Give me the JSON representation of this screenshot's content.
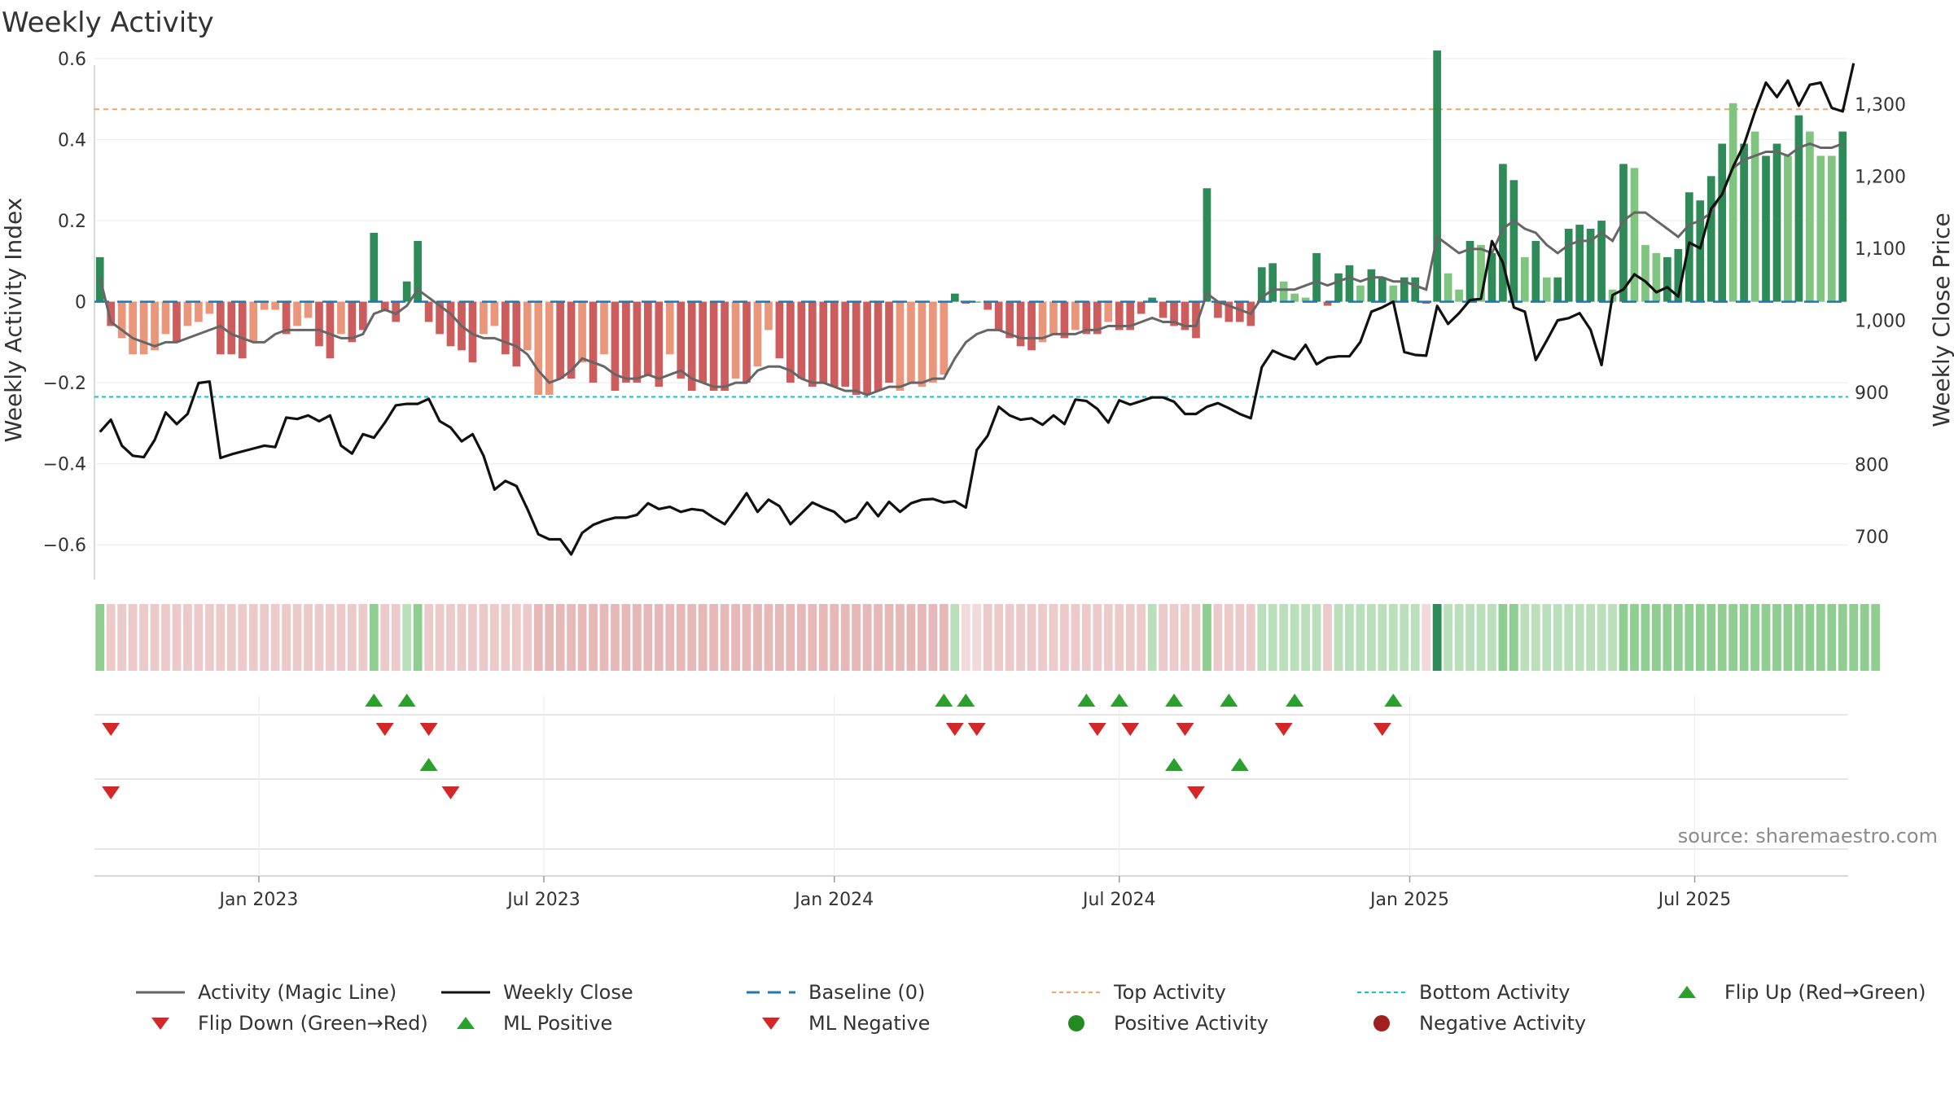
{
  "title": "Weekly Activity",
  "source": "source: sharemaestro.com",
  "colors": {
    "strong_green": "#2e8b57",
    "light_green": "#7fc47f",
    "strong_red": "#cd5c5c",
    "light_red": "#e9967a",
    "magic_line": "#666666",
    "close_line": "#111111",
    "baseline": "#1f77b4",
    "top": "#f4a460",
    "bottom": "#17becf",
    "flip_up": "#2ca02c",
    "flip_down": "#d62728",
    "neg_dot": "#a02020"
  },
  "legend": [
    {
      "key": "magic",
      "label": "Activity (Magic Line)",
      "icon": "solid-gray-line"
    },
    {
      "key": "close",
      "label": "Weekly Close",
      "icon": "solid-black-line"
    },
    {
      "key": "baseline",
      "label": "Baseline (0)",
      "icon": "dashed-blue-line"
    },
    {
      "key": "top",
      "label": "Top Activity",
      "icon": "dotted-orange-line"
    },
    {
      "key": "bottom",
      "label": "Bottom Activity",
      "icon": "dotted-cyan-line"
    },
    {
      "key": "flipup",
      "label": "Flip Up (Red→Green)",
      "icon": "green-up-triangle"
    },
    {
      "key": "flipdown",
      "label": "Flip Down (Green→Red)",
      "icon": "red-down-triangle"
    },
    {
      "key": "mlpos",
      "label": "ML Positive",
      "icon": "green-up-triangle"
    },
    {
      "key": "mlneg",
      "label": "ML Negative",
      "icon": "red-down-triangle"
    },
    {
      "key": "posact",
      "label": "Positive Activity",
      "icon": "green-dot"
    },
    {
      "key": "negact",
      "label": "Negative Activity",
      "icon": "red-dot"
    }
  ],
  "chart_data": {
    "type": "bar",
    "title": "Weekly Activity",
    "ylabel": "Weekly Activity Index",
    "y2label": "Weekly Close Price",
    "ylim": [
      -0.68,
      0.6
    ],
    "y2lim": [
      640,
      1360
    ],
    "yticks": [
      {
        "v": 0.6,
        "label": "0.6"
      },
      {
        "v": 0.4,
        "label": "0.4"
      },
      {
        "v": 0.2,
        "label": "0.2"
      },
      {
        "v": 0,
        "label": "0"
      },
      {
        "v": -0.2,
        "label": "−0.2"
      },
      {
        "v": -0.4,
        "label": "−0.4"
      },
      {
        "v": -0.6,
        "label": "−0.6"
      }
    ],
    "y2ticks": [
      {
        "v": 1300,
        "label": "1,300"
      },
      {
        "v": 1200,
        "label": "1,200"
      },
      {
        "v": 1100,
        "label": "1,100"
      },
      {
        "v": 1000,
        "label": "1,000"
      },
      {
        "v": 900,
        "label": "900"
      },
      {
        "v": 800,
        "label": "800"
      },
      {
        "v": 700,
        "label": "700"
      }
    ],
    "xticks": [
      {
        "i": 14.5,
        "label": "Jan 2023"
      },
      {
        "i": 40.5,
        "label": "Jul 2023"
      },
      {
        "i": 67,
        "label": "Jan 2024"
      },
      {
        "i": 93,
        "label": "Jul 2024"
      },
      {
        "i": 119.5,
        "label": "Jan 2025"
      },
      {
        "i": 145.5,
        "label": "Jul 2025"
      }
    ],
    "top_activity": 0.475,
    "bottom_activity": -0.235,
    "baseline": 0,
    "activity": [
      0.11,
      -0.06,
      -0.09,
      -0.13,
      -0.13,
      -0.12,
      -0.08,
      -0.1,
      -0.06,
      -0.05,
      -0.03,
      -0.13,
      -0.13,
      -0.14,
      -0.1,
      -0.02,
      -0.02,
      -0.08,
      -0.06,
      -0.04,
      -0.11,
      -0.14,
      -0.08,
      -0.1,
      -0.07,
      0.17,
      -0.02,
      -0.05,
      0.05,
      0.15,
      -0.05,
      -0.08,
      -0.11,
      -0.12,
      -0.15,
      -0.08,
      -0.06,
      -0.13,
      -0.16,
      -0.12,
      -0.23,
      -0.23,
      -0.19,
      -0.19,
      -0.15,
      -0.2,
      -0.13,
      -0.22,
      -0.2,
      -0.2,
      -0.18,
      -0.21,
      -0.13,
      -0.19,
      -0.22,
      -0.2,
      -0.22,
      -0.22,
      -0.19,
      -0.2,
      -0.16,
      -0.07,
      -0.14,
      -0.2,
      -0.19,
      -0.21,
      -0.2,
      -0.21,
      -0.21,
      -0.23,
      -0.23,
      -0.22,
      -0.2,
      -0.22,
      -0.2,
      -0.21,
      -0.2,
      -0.18,
      0.02,
      -0.005,
      0.0,
      -0.02,
      -0.07,
      -0.09,
      -0.11,
      -0.12,
      -0.1,
      -0.08,
      -0.09,
      -0.07,
      -0.08,
      -0.08,
      -0.05,
      -0.07,
      -0.07,
      -0.03,
      0.01,
      -0.04,
      -0.06,
      -0.07,
      -0.09,
      0.28,
      -0.04,
      -0.05,
      -0.05,
      -0.06,
      0.085,
      0.095,
      0.05,
      0.02,
      0.01,
      0.12,
      -0.01,
      0.07,
      0.09,
      0.04,
      0.08,
      0.06,
      0.04,
      0.06,
      0.06,
      -0.005,
      0.62,
      0.07,
      0.03,
      0.15,
      0.14,
      0.12,
      0.34,
      0.3,
      0.11,
      0.15,
      0.06,
      0.06,
      0.18,
      0.19,
      0.18,
      0.2,
      0.03,
      0.34,
      0.33,
      0.14,
      0.12,
      0.11,
      0.13,
      0.27,
      0.25,
      0.31,
      0.39,
      0.49,
      0.39,
      0.42,
      0.36,
      0.39,
      0.36,
      0.46,
      0.42,
      0.36,
      0.36,
      0.42
    ],
    "strength": [
      1,
      1,
      0,
      0,
      0,
      0,
      0,
      1,
      0,
      0,
      0,
      1,
      1,
      1,
      0,
      0,
      0,
      1,
      0,
      0,
      1,
      1,
      0,
      1,
      1,
      1,
      1,
      1,
      1,
      1,
      1,
      1,
      1,
      1,
      1,
      0,
      0,
      1,
      1,
      0,
      0,
      0,
      1,
      1,
      0,
      1,
      0,
      1,
      1,
      1,
      1,
      1,
      0,
      1,
      1,
      1,
      1,
      1,
      0,
      1,
      0,
      0,
      1,
      1,
      1,
      1,
      1,
      1,
      1,
      1,
      1,
      1,
      1,
      0,
      0,
      0,
      0,
      0,
      1,
      1,
      1,
      1,
      1,
      1,
      1,
      1,
      0,
      0,
      1,
      0,
      1,
      1,
      0,
      1,
      1,
      1,
      1,
      1,
      1,
      1,
      1,
      1,
      1,
      1,
      1,
      1,
      1,
      1,
      0,
      0,
      0,
      1,
      1,
      1,
      1,
      0,
      1,
      1,
      0,
      1,
      1,
      1,
      1,
      0,
      0,
      1,
      0,
      1,
      1,
      1,
      0,
      1,
      0,
      1,
      1,
      1,
      1,
      1,
      0,
      1,
      0,
      0,
      0,
      1,
      1,
      1,
      1,
      1,
      1,
      0,
      1,
      0,
      1,
      1,
      0,
      1,
      0,
      0,
      0,
      1
    ],
    "magic_line": [
      0.06,
      -0.05,
      -0.07,
      -0.09,
      -0.1,
      -0.11,
      -0.1,
      -0.1,
      -0.09,
      -0.08,
      -0.07,
      -0.06,
      -0.08,
      -0.09,
      -0.1,
      -0.1,
      -0.08,
      -0.07,
      -0.07,
      -0.07,
      -0.07,
      -0.08,
      -0.09,
      -0.09,
      -0.08,
      -0.03,
      -0.02,
      -0.03,
      -0.01,
      0.03,
      0.01,
      -0.01,
      -0.03,
      -0.06,
      -0.08,
      -0.09,
      -0.09,
      -0.1,
      -0.11,
      -0.13,
      -0.17,
      -0.2,
      -0.19,
      -0.17,
      -0.14,
      -0.15,
      -0.16,
      -0.18,
      -0.19,
      -0.19,
      -0.18,
      -0.19,
      -0.18,
      -0.17,
      -0.19,
      -0.2,
      -0.21,
      -0.21,
      -0.2,
      -0.2,
      -0.17,
      -0.16,
      -0.16,
      -0.17,
      -0.19,
      -0.2,
      -0.2,
      -0.21,
      -0.22,
      -0.22,
      -0.23,
      -0.22,
      -0.21,
      -0.21,
      -0.2,
      -0.2,
      -0.19,
      -0.19,
      -0.14,
      -0.1,
      -0.08,
      -0.07,
      -0.07,
      -0.08,
      -0.09,
      -0.09,
      -0.09,
      -0.08,
      -0.08,
      -0.08,
      -0.07,
      -0.07,
      -0.06,
      -0.06,
      -0.06,
      -0.05,
      -0.04,
      -0.05,
      -0.05,
      -0.06,
      -0.06,
      0.02,
      0.0,
      -0.01,
      -0.02,
      -0.03,
      0.01,
      0.03,
      0.03,
      0.03,
      0.04,
      0.05,
      0.04,
      0.05,
      0.06,
      0.05,
      0.06,
      0.06,
      0.05,
      0.05,
      0.04,
      0.03,
      0.16,
      0.14,
      0.12,
      0.13,
      0.13,
      0.12,
      0.18,
      0.2,
      0.18,
      0.17,
      0.14,
      0.12,
      0.14,
      0.15,
      0.15,
      0.17,
      0.15,
      0.2,
      0.22,
      0.22,
      0.2,
      0.18,
      0.16,
      0.19,
      0.2,
      0.22,
      0.27,
      0.33,
      0.35,
      0.36,
      0.37,
      0.37,
      0.36,
      0.38,
      0.39,
      0.38,
      0.38,
      0.39
    ],
    "close": [
      845,
      862,
      826,
      812,
      810,
      834,
      872,
      856,
      870,
      913,
      915,
      809,
      814,
      818,
      822,
      826,
      824,
      865,
      863,
      868,
      860,
      868,
      826,
      815,
      842,
      837,
      858,
      882,
      884,
      884,
      891,
      860,
      851,
      832,
      842,
      812,
      765,
      777,
      770,
      738,
      703,
      696,
      696,
      675,
      705,
      716,
      722,
      726,
      726,
      730,
      746,
      738,
      741,
      734,
      738,
      736,
      726,
      717,
      738,
      760,
      734,
      751,
      742,
      717,
      732,
      747,
      740,
      734,
      720,
      726,
      747,
      728,
      748,
      734,
      746,
      751,
      752,
      747,
      749,
      740,
      820,
      840,
      880,
      868,
      862,
      864,
      855,
      868,
      856,
      890,
      888,
      877,
      858,
      889,
      883,
      888,
      893,
      893,
      887,
      870,
      870,
      880,
      885,
      878,
      870,
      864,
      935,
      958,
      951,
      946,
      966,
      939,
      948,
      950,
      950,
      970,
      1012,
      1018,
      1026,
      956,
      952,
      951,
      1020,
      995,
      1010,
      1028,
      1030,
      1110,
      1080,
      1018,
      1012,
      945,
      972,
      1000,
      1003,
      1010,
      987,
      938,
      1035,
      1043,
      1064,
      1054,
      1039,
      1046,
      1033,
      1108,
      1100,
      1155,
      1175,
      1213,
      1244,
      1290,
      1330,
      1310,
      1333,
      1298,
      1327,
      1330,
      1295,
      1290,
      1357
    ],
    "regime_bar": [
      {
        "t": "pos",
        "s": 2
      },
      {
        "t": "neg",
        "s": 1
      },
      {
        "t": "neg",
        "s": 1
      },
      {
        "t": "neg",
        "s": 1
      },
      {
        "t": "neg",
        "s": 1
      },
      {
        "t": "neg",
        "s": 1
      },
      {
        "t": "neg",
        "s": 1
      },
      {
        "t": "neg",
        "s": 1
      },
      {
        "t": "neg",
        "s": 1
      },
      {
        "t": "neg",
        "s": 1
      },
      {
        "t": "neg",
        "s": 1
      },
      {
        "t": "neg",
        "s": 1
      },
      {
        "t": "neg",
        "s": 1
      },
      {
        "t": "neg",
        "s": 1
      },
      {
        "t": "neg",
        "s": 1
      },
      {
        "t": "neg",
        "s": 1
      },
      {
        "t": "neg",
        "s": 1
      },
      {
        "t": "neg",
        "s": 1
      },
      {
        "t": "neg",
        "s": 1
      },
      {
        "t": "neg",
        "s": 1
      },
      {
        "t": "neg",
        "s": 1
      },
      {
        "t": "neg",
        "s": 1
      },
      {
        "t": "neg",
        "s": 1
      },
      {
        "t": "neg",
        "s": 1
      },
      {
        "t": "neg",
        "s": 1
      },
      {
        "t": "pos",
        "s": 2
      },
      {
        "t": "neg",
        "s": 1
      },
      {
        "t": "neg",
        "s": 1
      },
      {
        "t": "pos",
        "s": 1
      },
      {
        "t": "pos",
        "s": 2
      },
      {
        "t": "neg",
        "s": 1
      },
      {
        "t": "neg",
        "s": 1
      },
      {
        "t": "neg",
        "s": 1
      },
      {
        "t": "neg",
        "s": 1
      },
      {
        "t": "neg",
        "s": 1
      },
      {
        "t": "neg",
        "s": 1
      },
      {
        "t": "neg",
        "s": 1
      },
      {
        "t": "neg",
        "s": 1
      },
      {
        "t": "neg",
        "s": 1
      },
      {
        "t": "neg",
        "s": 1
      },
      {
        "t": "neg",
        "s": 2
      },
      {
        "t": "neg",
        "s": 2
      },
      {
        "t": "neg",
        "s": 2
      },
      {
        "t": "neg",
        "s": 2
      },
      {
        "t": "neg",
        "s": 2
      },
      {
        "t": "neg",
        "s": 2
      },
      {
        "t": "neg",
        "s": 2
      },
      {
        "t": "neg",
        "s": 2
      },
      {
        "t": "neg",
        "s": 2
      },
      {
        "t": "neg",
        "s": 2
      },
      {
        "t": "neg",
        "s": 2
      },
      {
        "t": "neg",
        "s": 2
      },
      {
        "t": "neg",
        "s": 2
      },
      {
        "t": "neg",
        "s": 2
      },
      {
        "t": "neg",
        "s": 2
      },
      {
        "t": "neg",
        "s": 2
      },
      {
        "t": "neg",
        "s": 2
      },
      {
        "t": "neg",
        "s": 2
      },
      {
        "t": "neg",
        "s": 2
      },
      {
        "t": "neg",
        "s": 2
      },
      {
        "t": "neg",
        "s": 2
      },
      {
        "t": "neg",
        "s": 2
      },
      {
        "t": "neg",
        "s": 2
      },
      {
        "t": "neg",
        "s": 2
      },
      {
        "t": "neg",
        "s": 2
      },
      {
        "t": "neg",
        "s": 2
      },
      {
        "t": "neg",
        "s": 2
      },
      {
        "t": "neg",
        "s": 2
      },
      {
        "t": "neg",
        "s": 2
      },
      {
        "t": "neg",
        "s": 2
      },
      {
        "t": "neg",
        "s": 2
      },
      {
        "t": "neg",
        "s": 2
      },
      {
        "t": "neg",
        "s": 2
      },
      {
        "t": "neg",
        "s": 2
      },
      {
        "t": "neg",
        "s": 2
      },
      {
        "t": "neg",
        "s": 2
      },
      {
        "t": "neg",
        "s": 2
      },
      {
        "t": "neg",
        "s": 2
      },
      {
        "t": "pos",
        "s": 1
      },
      {
        "t": "neg",
        "s": 0
      },
      {
        "t": "neg",
        "s": 0
      },
      {
        "t": "neg",
        "s": 1
      },
      {
        "t": "neg",
        "s": 1
      },
      {
        "t": "neg",
        "s": 1
      },
      {
        "t": "neg",
        "s": 1
      },
      {
        "t": "neg",
        "s": 1
      },
      {
        "t": "neg",
        "s": 1
      },
      {
        "t": "neg",
        "s": 1
      },
      {
        "t": "neg",
        "s": 1
      },
      {
        "t": "neg",
        "s": 1
      },
      {
        "t": "neg",
        "s": 1
      },
      {
        "t": "neg",
        "s": 1
      },
      {
        "t": "neg",
        "s": 1
      },
      {
        "t": "neg",
        "s": 1
      },
      {
        "t": "neg",
        "s": 1
      },
      {
        "t": "neg",
        "s": 1
      },
      {
        "t": "pos",
        "s": 1
      },
      {
        "t": "neg",
        "s": 1
      },
      {
        "t": "neg",
        "s": 1
      },
      {
        "t": "neg",
        "s": 1
      },
      {
        "t": "neg",
        "s": 1
      },
      {
        "t": "pos",
        "s": 2
      },
      {
        "t": "neg",
        "s": 1
      },
      {
        "t": "neg",
        "s": 1
      },
      {
        "t": "neg",
        "s": 1
      },
      {
        "t": "neg",
        "s": 1
      },
      {
        "t": "pos",
        "s": 1
      },
      {
        "t": "pos",
        "s": 1
      },
      {
        "t": "pos",
        "s": 1
      },
      {
        "t": "pos",
        "s": 1
      },
      {
        "t": "pos",
        "s": 1
      },
      {
        "t": "pos",
        "s": 1
      },
      {
        "t": "neg",
        "s": 1
      },
      {
        "t": "pos",
        "s": 1
      },
      {
        "t": "pos",
        "s": 1
      },
      {
        "t": "pos",
        "s": 1
      },
      {
        "t": "pos",
        "s": 1
      },
      {
        "t": "pos",
        "s": 1
      },
      {
        "t": "pos",
        "s": 1
      },
      {
        "t": "pos",
        "s": 1
      },
      {
        "t": "pos",
        "s": 1
      },
      {
        "t": "neg",
        "s": 0
      },
      {
        "t": "pos",
        "s": 3
      },
      {
        "t": "pos",
        "s": 1
      },
      {
        "t": "pos",
        "s": 1
      },
      {
        "t": "pos",
        "s": 1
      },
      {
        "t": "pos",
        "s": 1
      },
      {
        "t": "pos",
        "s": 1
      },
      {
        "t": "pos",
        "s": 2
      },
      {
        "t": "pos",
        "s": 2
      },
      {
        "t": "pos",
        "s": 1
      },
      {
        "t": "pos",
        "s": 1
      },
      {
        "t": "pos",
        "s": 1
      },
      {
        "t": "pos",
        "s": 1
      },
      {
        "t": "pos",
        "s": 1
      },
      {
        "t": "pos",
        "s": 1
      },
      {
        "t": "pos",
        "s": 1
      },
      {
        "t": "pos",
        "s": 1
      },
      {
        "t": "pos",
        "s": 1
      },
      {
        "t": "pos",
        "s": 2
      },
      {
        "t": "pos",
        "s": 2
      },
      {
        "t": "pos",
        "s": 2
      },
      {
        "t": "pos",
        "s": 2
      },
      {
        "t": "pos",
        "s": 2
      },
      {
        "t": "pos",
        "s": 2
      },
      {
        "t": "pos",
        "s": 2
      },
      {
        "t": "pos",
        "s": 2
      },
      {
        "t": "pos",
        "s": 2
      },
      {
        "t": "pos",
        "s": 2
      },
      {
        "t": "pos",
        "s": 2
      },
      {
        "t": "pos",
        "s": 2
      },
      {
        "t": "pos",
        "s": 2
      },
      {
        "t": "pos",
        "s": 2
      },
      {
        "t": "pos",
        "s": 2
      },
      {
        "t": "pos",
        "s": 2
      },
      {
        "t": "pos",
        "s": 2
      },
      {
        "t": "pos",
        "s": 2
      },
      {
        "t": "pos",
        "s": 2
      },
      {
        "t": "pos",
        "s": 2
      },
      {
        "t": "pos",
        "s": 2
      },
      {
        "t": "pos",
        "s": 2
      },
      {
        "t": "pos",
        "s": 2
      },
      {
        "t": "pos",
        "s": 2
      }
    ],
    "flip_up": [
      25,
      28,
      77,
      79,
      90,
      93,
      98,
      103,
      109,
      118
    ],
    "flip_down": [
      1,
      26,
      30,
      78,
      80,
      91,
      94,
      99,
      108,
      117
    ],
    "ml_positive": [
      30,
      98,
      104
    ],
    "ml_negative": [
      1,
      32,
      100
    ]
  }
}
